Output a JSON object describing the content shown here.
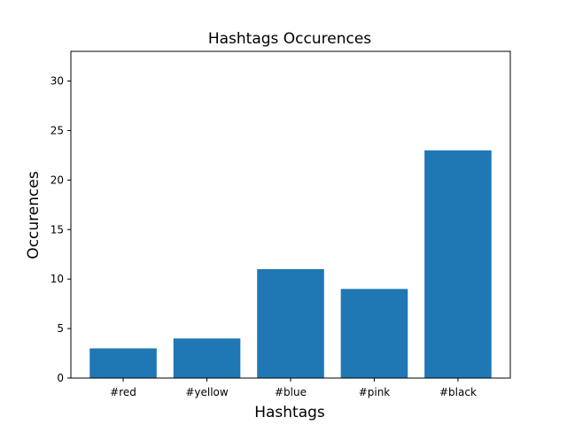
{
  "chart_data": {
    "type": "bar",
    "title": "Hashtags Occurences",
    "xlabel": "Hashtags",
    "ylabel": "Occurences",
    "categories": [
      "#red",
      "#yellow",
      "#blue",
      "#pink",
      "#black"
    ],
    "values": [
      3,
      4,
      11,
      9,
      23
    ],
    "ylim": [
      0,
      33
    ],
    "yticks": [
      "0",
      "5",
      "10",
      "15",
      "20",
      "25",
      "30"
    ],
    "grid": false,
    "bar_color": "#1f77b4"
  }
}
